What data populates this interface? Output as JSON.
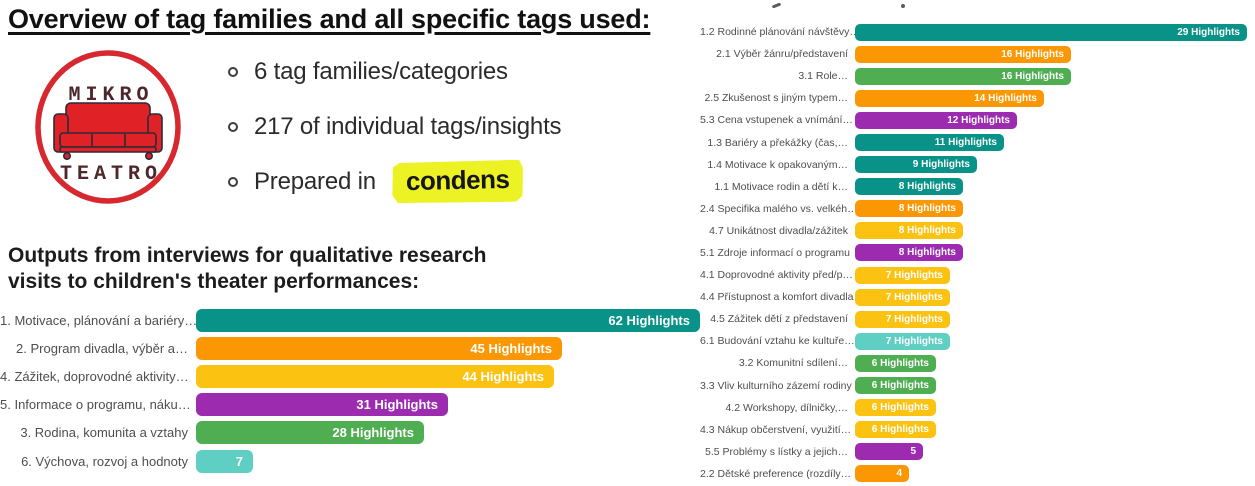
{
  "header": {
    "title": "Overview of tag families and all specific tags used:"
  },
  "logo": {
    "top_text": "MIKRO",
    "bottom_text": "TEATRO",
    "ring_color": "#D7282F",
    "couch_color": "#E02227",
    "outline_color": "#2b2b3a",
    "letter_color": "#4E272B"
  },
  "bullets": {
    "items": [
      {
        "text": "6 tag families/categories"
      },
      {
        "text": "217 of individual tags/insights"
      },
      {
        "text": "Prepared in",
        "badge": "condens",
        "badge_bg": "#EDF224"
      }
    ]
  },
  "subtitle": {
    "line1": "Outputs from interviews for qualitative research",
    "line2": "visits to children's theater performances:"
  },
  "chart_data": [
    {
      "name": "tag-families-overview",
      "type": "bar",
      "orientation": "horizontal",
      "title": "",
      "xlabel": "",
      "ylabel": "",
      "grid": false,
      "legend": false,
      "xlim": [
        0,
        62
      ],
      "unit": "Highlights",
      "categories": [
        "1. Motivace, plánování a bariéry…",
        "2. Program divadla, výběr a…",
        "4. Zážitek, doprovodné aktivity…",
        "5. Informace o programu, náku…",
        "3. Rodina, komunita a vztahy",
        "6. Výchova, rozvoj a hodnoty"
      ],
      "values": [
        62,
        45,
        44,
        31,
        28,
        7
      ],
      "value_labels": [
        "62 Highlights",
        "45 Highlights",
        "44 Highlights",
        "31 Highlights",
        "28 Highlights",
        "7"
      ],
      "colors": [
        "#089288",
        "#FA9703",
        "#FCC211",
        "#9C2BB0",
        "#4FAD52",
        "#5ECFC2"
      ]
    },
    {
      "name": "specific-tags-breakdown",
      "type": "bar",
      "orientation": "horizontal",
      "title": "",
      "xlabel": "",
      "ylabel": "",
      "grid": false,
      "legend": false,
      "xlim": [
        0,
        29
      ],
      "unit": "Highlights",
      "categories": [
        "1.2 Rodinné plánování návštěvy…",
        "2.1 Výběr žánru/představení",
        "3.1 Role…",
        "2.5 Zkušenost s jiným typem…",
        "5.3 Cena vstupenek a vnímání…",
        "1.3 Bariéry a překážky (čas,…",
        "1.4 Motivace k opakovaným…",
        "1.1 Motivace rodin a dětí k…",
        "2.4 Specifika malého vs. velkéh…",
        "4.7 Unikátnost divadla/zážitek",
        "5.1 Zdroje informací o programu",
        "4.1 Doprovodné aktivity před/p…",
        "4.4 Přístupnost a komfort divadla",
        "4.5 Zážitek dětí z představení",
        "6.1 Budování vztahu ke kultuře…",
        "3.2 Komunitní sdílení…",
        "3.3 Vliv kulturního zázemí rodiny",
        "4.2 Workshopy, dílničky,…",
        "4.3 Nákup občerstvení, využití…",
        "5.5 Problémy s lístky a jejich…",
        "2.2 Dětské preference (rozdíly…"
      ],
      "values": [
        29,
        16,
        16,
        14,
        12,
        11,
        9,
        8,
        8,
        8,
        8,
        7,
        7,
        7,
        7,
        6,
        6,
        6,
        6,
        5,
        4
      ],
      "value_labels": [
        "29 Highlights",
        "16 Highlights",
        "16 Highlights",
        "14 Highlights",
        "12 Highlights",
        "11 Highlights",
        "9 Highlights",
        "8 Highlights",
        "8 Highlights",
        "8 Highlights",
        "8 Highlights",
        "7 Highlights",
        "7 Highlights",
        "7 Highlights",
        "7 Highlights",
        "6 Highlights",
        "6 Highlights",
        "6 Highlights",
        "6 Highlights",
        "5",
        "4"
      ],
      "colors": [
        "#089288",
        "#FA9703",
        "#4FAD52",
        "#FA9703",
        "#9C2BB0",
        "#089288",
        "#089288",
        "#089288",
        "#FA9703",
        "#FCC211",
        "#9C2BB0",
        "#FCC211",
        "#FCC211",
        "#FCC211",
        "#5ECFC2",
        "#4FAD52",
        "#4FAD52",
        "#FCC211",
        "#FCC211",
        "#9C2BB0",
        "#FA9703"
      ]
    }
  ]
}
